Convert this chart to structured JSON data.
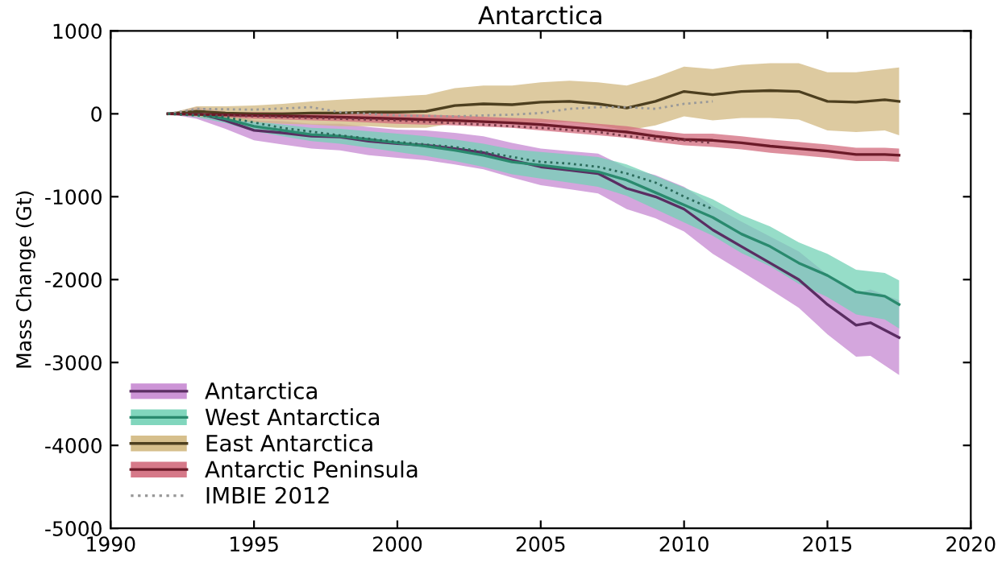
{
  "chart_data": {
    "type": "line",
    "title": "Antarctica",
    "ylabel": "Mass Change (Gt)",
    "xlim": [
      1990,
      2020
    ],
    "ylim": [
      -5000,
      1000
    ],
    "xticks": [
      1990,
      1995,
      2000,
      2005,
      2010,
      2015,
      2020
    ],
    "yticks": [
      -5000,
      -4000,
      -3000,
      -2000,
      -1000,
      0,
      1000
    ],
    "grid": false,
    "legend": "bottom left",
    "line_style": "solid",
    "marker": "none",
    "series": [
      {
        "name": "Antarctica",
        "color": "#5a2d62",
        "x": [
          1992,
          1993,
          1994,
          1995,
          1996,
          1997,
          1998,
          1999,
          2000,
          2001,
          2002,
          2003,
          2004,
          2005,
          2006,
          2007,
          2008,
          2009,
          2010,
          2011,
          2012,
          2013,
          2014,
          2015,
          2016,
          2016.5,
          2017.5
        ],
        "values": [
          0,
          10,
          -80,
          -200,
          -230,
          -270,
          -280,
          -330,
          -360,
          -380,
          -420,
          -470,
          -560,
          -640,
          -680,
          -720,
          -900,
          -1000,
          -1150,
          -1400,
          -1600,
          -1800,
          -2000,
          -2300,
          -2550,
          -2520,
          -2700
        ],
        "lower": [
          0,
          -60,
          -180,
          -320,
          -370,
          -420,
          -440,
          -500,
          -530,
          -560,
          -610,
          -670,
          -770,
          -860,
          -910,
          -960,
          -1150,
          -1260,
          -1420,
          -1690,
          -1900,
          -2120,
          -2340,
          -2660,
          -2930,
          -2920,
          -3150
        ],
        "upper": [
          0,
          80,
          30,
          -80,
          -90,
          -120,
          -120,
          -160,
          -190,
          -200,
          -230,
          -270,
          -350,
          -420,
          -450,
          -480,
          -650,
          -740,
          -880,
          -1110,
          -1300,
          -1480,
          -1660,
          -1940,
          -2170,
          -2120,
          -2250
        ]
      },
      {
        "name": "West Antarctica",
        "color": "#2a8a6e",
        "x": [
          1992,
          1993,
          1994,
          1995,
          1996,
          1997,
          1998,
          1999,
          2000,
          2001,
          2002,
          2003,
          2004,
          2005,
          2006,
          2007,
          2008,
          2009,
          2010,
          2011,
          2012,
          2013,
          2014,
          2015,
          2016,
          2017,
          2017.5
        ],
        "values": [
          0,
          0,
          -60,
          -150,
          -200,
          -250,
          -270,
          -310,
          -350,
          -390,
          -440,
          -500,
          -580,
          -620,
          -660,
          -700,
          -800,
          -950,
          -1100,
          -1250,
          -1450,
          -1600,
          -1800,
          -1950,
          -2150,
          -2200,
          -2300
        ],
        "lower": [
          0,
          -40,
          -110,
          -210,
          -270,
          -330,
          -360,
          -410,
          -460,
          -510,
          -570,
          -640,
          -730,
          -780,
          -830,
          -880,
          -990,
          -1150,
          -1310,
          -1470,
          -1680,
          -1840,
          -2050,
          -2210,
          -2420,
          -2480,
          -2590
        ],
        "upper": [
          0,
          40,
          -10,
          -90,
          -130,
          -170,
          -180,
          -210,
          -240,
          -270,
          -310,
          -360,
          -430,
          -460,
          -490,
          -520,
          -610,
          -750,
          -890,
          -1030,
          -1220,
          -1360,
          -1550,
          -1690,
          -1880,
          -1920,
          -2010
        ]
      },
      {
        "name": "East Antarctica",
        "color": "#4d3f1f",
        "x": [
          1992,
          1993,
          1994,
          1995,
          1996,
          1997,
          1998,
          1999,
          2000,
          2001,
          2002,
          2003,
          2004,
          2005,
          2006,
          2007,
          2008,
          2009,
          2010,
          2011,
          2012,
          2013,
          2014,
          2015,
          2016,
          2017,
          2017.5
        ],
        "values": [
          0,
          30,
          10,
          0,
          0,
          10,
          10,
          20,
          20,
          30,
          100,
          120,
          110,
          140,
          150,
          120,
          70,
          150,
          270,
          230,
          270,
          280,
          270,
          150,
          140,
          170,
          150
        ],
        "lower": [
          0,
          -30,
          -70,
          -100,
          -120,
          -130,
          -150,
          -150,
          -170,
          -170,
          -110,
          -100,
          -120,
          -100,
          -100,
          -140,
          -200,
          -140,
          -30,
          -80,
          -50,
          -50,
          -70,
          -200,
          -220,
          -200,
          -260
        ],
        "upper": [
          0,
          90,
          90,
          100,
          120,
          150,
          170,
          190,
          210,
          230,
          310,
          340,
          340,
          380,
          400,
          380,
          340,
          440,
          570,
          540,
          590,
          610,
          610,
          500,
          500,
          540,
          560
        ]
      },
      {
        "name": "Antarctic Peninsula",
        "color": "#6b1a28",
        "x": [
          1992,
          1995,
          1998,
          2000,
          2002,
          2004,
          2005,
          2006,
          2007,
          2008,
          2009,
          2010,
          2011,
          2012,
          2013,
          2014,
          2015,
          2016,
          2017,
          2017.5
        ],
        "values": [
          0,
          -20,
          -40,
          -60,
          -80,
          -110,
          -130,
          -160,
          -190,
          -220,
          -270,
          -310,
          -320,
          -350,
          -390,
          -420,
          -450,
          -490,
          -490,
          -500
        ],
        "lower": [
          0,
          -60,
          -90,
          -120,
          -140,
          -170,
          -200,
          -230,
          -260,
          -290,
          -340,
          -380,
          -400,
          -430,
          -470,
          -500,
          -530,
          -570,
          -570,
          -580
        ],
        "upper": [
          0,
          20,
          10,
          0,
          -20,
          -50,
          -60,
          -90,
          -120,
          -150,
          -200,
          -240,
          -240,
          -270,
          -310,
          -340,
          -370,
          -410,
          -410,
          -420
        ]
      },
      {
        "name": "IMBIE 2012",
        "color": "#999999",
        "line_style": "dotted",
        "x": [
          1992,
          1993,
          1995,
          1997,
          1998,
          2000,
          2002,
          2004,
          2005,
          2006,
          2007,
          2008,
          2009,
          2010,
          2011
        ],
        "values": [
          0,
          60,
          50,
          80,
          20,
          -20,
          -30,
          -10,
          10,
          60,
          80,
          80,
          60,
          120,
          150
        ]
      },
      {
        "color": "#7a3a48",
        "line_style": "dotted",
        "x": [
          1992,
          1995,
          2000,
          2003,
          2005,
          2007,
          2008,
          2009,
          2010,
          2011
        ],
        "values": [
          0,
          -30,
          -80,
          -130,
          -170,
          -220,
          -270,
          -300,
          -320,
          -350
        ]
      },
      {
        "color": "#2a6a5a",
        "line_style": "dotted",
        "x": [
          1992,
          1994,
          1996,
          1998,
          2000,
          2002,
          2004,
          2005,
          2006,
          2007,
          2008,
          2009,
          2010,
          2011
        ],
        "values": [
          0,
          -40,
          -170,
          -260,
          -340,
          -400,
          -520,
          -580,
          -600,
          -640,
          -720,
          -830,
          -1000,
          -1150
        ]
      }
    ]
  }
}
